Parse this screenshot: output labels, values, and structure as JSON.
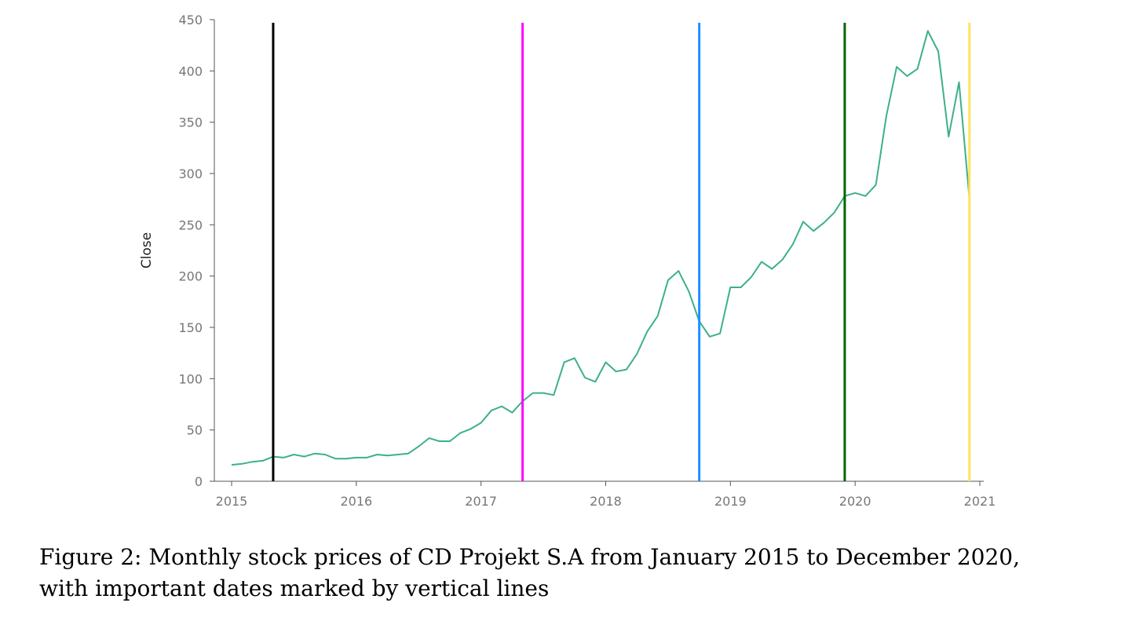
{
  "chart_data": {
    "type": "line",
    "title": "",
    "xlabel": "",
    "ylabel": "Close",
    "xlim": [
      2015.0,
      2021.0
    ],
    "ylim": [
      0,
      450
    ],
    "x_ticks": [
      "2015",
      "2016",
      "2017",
      "2018",
      "2019",
      "2020",
      "2021"
    ],
    "y_ticks": [
      "0",
      "50",
      "100",
      "150",
      "200",
      "250",
      "300",
      "350",
      "400",
      "450"
    ],
    "grid": false,
    "legend": "none",
    "series": [
      {
        "color": "#3cb08a",
        "x": [
          "2015-01",
          "2015-02",
          "2015-03",
          "2015-04",
          "2015-05",
          "2015-06",
          "2015-07",
          "2015-08",
          "2015-09",
          "2015-10",
          "2015-11",
          "2015-12",
          "2016-01",
          "2016-02",
          "2016-03",
          "2016-04",
          "2016-05",
          "2016-06",
          "2016-07",
          "2016-08",
          "2016-09",
          "2016-10",
          "2016-11",
          "2016-12",
          "2017-01",
          "2017-02",
          "2017-03",
          "2017-04",
          "2017-05",
          "2017-06",
          "2017-07",
          "2017-08",
          "2017-09",
          "2017-10",
          "2017-11",
          "2017-12",
          "2018-01",
          "2018-02",
          "2018-03",
          "2018-04",
          "2018-05",
          "2018-06",
          "2018-07",
          "2018-08",
          "2018-09",
          "2018-10",
          "2018-11",
          "2018-12",
          "2019-01",
          "2019-02",
          "2019-03",
          "2019-04",
          "2019-05",
          "2019-06",
          "2019-07",
          "2019-08",
          "2019-09",
          "2019-10",
          "2019-11",
          "2019-12",
          "2020-01",
          "2020-02",
          "2020-03",
          "2020-04",
          "2020-05",
          "2020-06",
          "2020-07",
          "2020-08",
          "2020-09",
          "2020-10",
          "2020-11",
          "2020-12"
        ],
        "values": [
          16,
          17,
          19,
          20,
          24,
          23,
          26,
          24,
          27,
          26,
          22,
          22,
          23,
          23,
          26,
          25,
          26,
          27,
          34,
          42,
          39,
          39,
          47,
          51,
          57,
          69,
          73,
          67,
          78,
          86,
          86,
          84,
          116,
          120,
          101,
          97,
          116,
          107,
          109,
          124,
          146,
          161,
          196,
          205,
          185,
          156,
          141,
          144,
          189,
          189,
          199,
          214,
          207,
          216,
          231,
          253,
          244,
          252,
          262,
          278,
          281,
          278,
          289,
          356,
          404,
          395,
          402,
          439,
          419,
          336,
          389,
          275
        ]
      }
    ],
    "vertical_markers": [
      {
        "x": "2015-05",
        "color": "#000000"
      },
      {
        "x": "2017-05",
        "color": "#ff00ff"
      },
      {
        "x": "2018-10",
        "color": "#1e90ff"
      },
      {
        "x": "2019-12",
        "color": "#006400"
      },
      {
        "x": "2020-12",
        "color": "#ffe45c"
      }
    ]
  },
  "caption": {
    "line1": "Figure 2: Monthly stock prices of CD Projekt S.A from January 2015 to December 2020,",
    "line2": "with important dates marked by vertical lines"
  }
}
